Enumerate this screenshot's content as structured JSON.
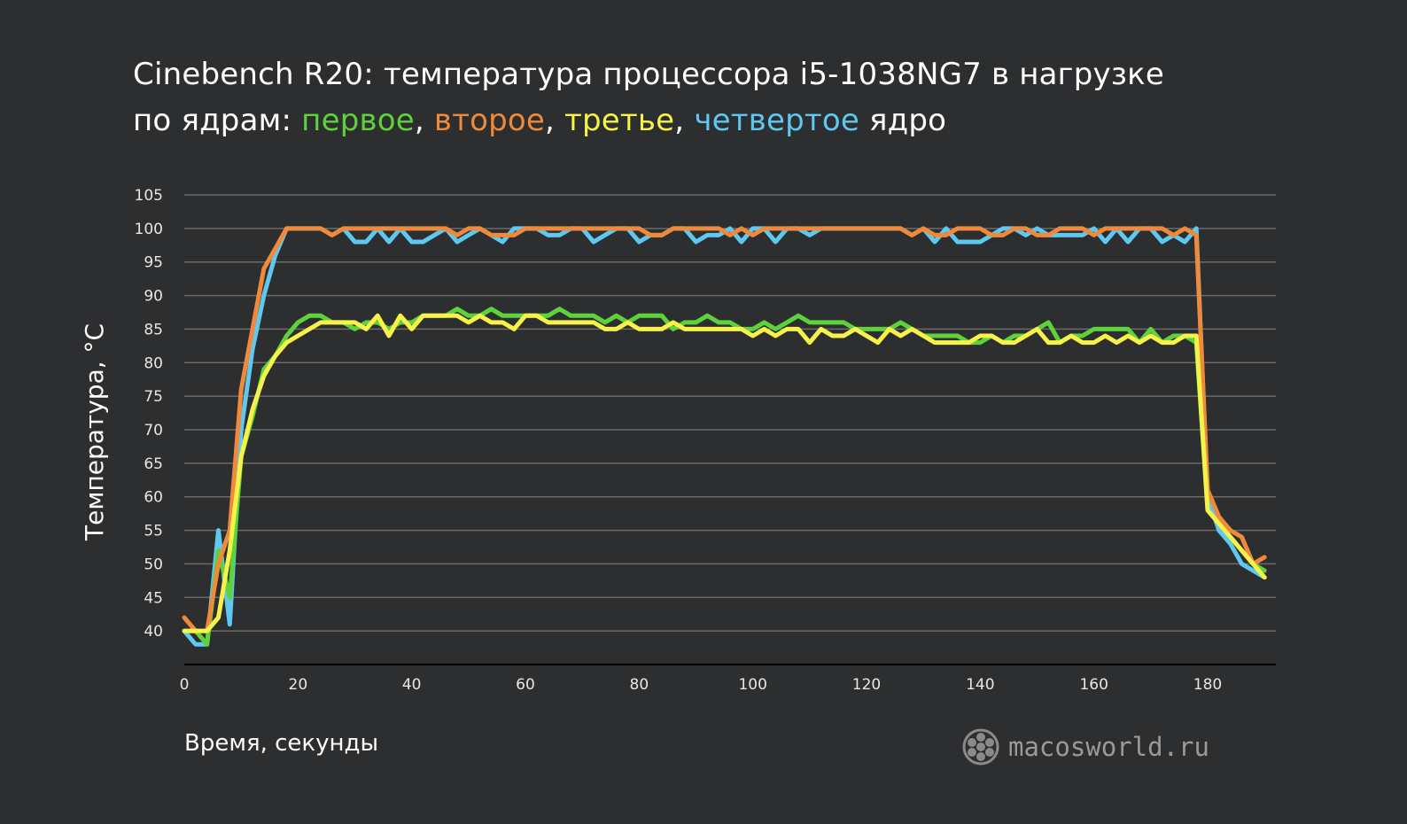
{
  "title": {
    "line1": "Cinebench R20: температура процессора i5-1038NG7 в нагрузке",
    "line2_prefix": "по ядрам: ",
    "core1": "первое",
    "sep1": ", ",
    "core2": "второе",
    "sep2": ", ",
    "core3": "третье",
    "sep3": ", ",
    "core4": "четвертое",
    "suffix": " ядро"
  },
  "watermark": {
    "text": "macosworld.ru",
    "icon": "aperture-logo-icon"
  },
  "colors": {
    "background": "#2d2e30",
    "grid": "#6a6a6a",
    "core1": "#5ed23a",
    "core2": "#f08a3a",
    "core3": "#f6f24a",
    "core4": "#5ec8f0"
  },
  "chart_data": {
    "type": "line",
    "xlabel": "Время, секунды",
    "ylabel": "Температура, °C",
    "xlim": [
      0,
      192
    ],
    "ylim": [
      35,
      105
    ],
    "xticks": [
      0,
      20,
      40,
      60,
      80,
      100,
      120,
      140,
      160,
      180
    ],
    "yticks": [
      40,
      45,
      50,
      55,
      60,
      65,
      70,
      75,
      80,
      85,
      90,
      95,
      100,
      105
    ],
    "grid": true,
    "series": [
      {
        "name": "четвертое",
        "color": "#5ec8f0",
        "x": [
          0,
          2,
          4,
          6,
          8,
          10,
          12,
          14,
          16,
          18,
          20,
          22,
          24,
          26,
          28,
          30,
          32,
          34,
          36,
          38,
          40,
          42,
          44,
          46,
          48,
          50,
          52,
          54,
          56,
          58,
          60,
          62,
          64,
          66,
          68,
          70,
          72,
          74,
          76,
          78,
          80,
          82,
          84,
          86,
          88,
          90,
          92,
          94,
          96,
          98,
          100,
          102,
          104,
          106,
          108,
          110,
          112,
          114,
          116,
          118,
          120,
          122,
          124,
          126,
          128,
          130,
          132,
          134,
          136,
          138,
          140,
          142,
          144,
          146,
          148,
          150,
          152,
          154,
          156,
          158,
          160,
          162,
          164,
          166,
          168,
          170,
          172,
          174,
          176,
          178,
          180,
          182,
          184,
          186,
          188,
          190
        ],
        "y": [
          40,
          38,
          38,
          55,
          41,
          70,
          82,
          90,
          96,
          100,
          100,
          100,
          100,
          99,
          100,
          98,
          98,
          100,
          98,
          100,
          98,
          98,
          99,
          100,
          98,
          99,
          100,
          99,
          98,
          100,
          100,
          100,
          99,
          99,
          100,
          100,
          98,
          99,
          100,
          100,
          98,
          99,
          99,
          100,
          100,
          98,
          99,
          99,
          100,
          98,
          100,
          100,
          98,
          100,
          100,
          99,
          100,
          100,
          100,
          100,
          100,
          100,
          100,
          100,
          99,
          100,
          98,
          100,
          98,
          98,
          98,
          99,
          100,
          100,
          99,
          100,
          99,
          99,
          99,
          99,
          100,
          98,
          100,
          98,
          100,
          100,
          98,
          99,
          98,
          100,
          60,
          55,
          53,
          50,
          49,
          48
        ]
      },
      {
        "name": "первое",
        "color": "#5ed23a",
        "x": [
          0,
          2,
          4,
          6,
          8,
          10,
          12,
          14,
          16,
          18,
          20,
          22,
          24,
          26,
          28,
          30,
          32,
          34,
          36,
          38,
          40,
          42,
          44,
          46,
          48,
          50,
          52,
          54,
          56,
          58,
          60,
          62,
          64,
          66,
          68,
          70,
          72,
          74,
          76,
          78,
          80,
          82,
          84,
          86,
          88,
          90,
          92,
          94,
          96,
          98,
          100,
          102,
          104,
          106,
          108,
          110,
          112,
          114,
          116,
          118,
          120,
          122,
          124,
          126,
          128,
          130,
          132,
          134,
          136,
          138,
          140,
          142,
          144,
          146,
          148,
          150,
          152,
          154,
          156,
          158,
          160,
          162,
          164,
          166,
          168,
          170,
          172,
          174,
          176,
          178,
          180,
          182,
          184,
          186,
          188,
          190
        ],
        "y": [
          40,
          40,
          38,
          52,
          45,
          66,
          72,
          79,
          81,
          84,
          86,
          87,
          87,
          86,
          86,
          85,
          86,
          86,
          85,
          86,
          86,
          87,
          87,
          87,
          88,
          87,
          87,
          88,
          87,
          87,
          87,
          87,
          87,
          88,
          87,
          87,
          87,
          86,
          87,
          86,
          87,
          87,
          87,
          85,
          86,
          86,
          87,
          86,
          86,
          85,
          85,
          86,
          85,
          86,
          87,
          86,
          86,
          86,
          86,
          85,
          85,
          85,
          85,
          86,
          85,
          84,
          84,
          84,
          84,
          83,
          83,
          84,
          83,
          84,
          84,
          85,
          86,
          83,
          84,
          84,
          85,
          85,
          85,
          85,
          83,
          85,
          83,
          84,
          84,
          83,
          58,
          56,
          54,
          52,
          50,
          49
        ]
      },
      {
        "name": "второе",
        "color": "#f08a3a",
        "x": [
          0,
          2,
          4,
          6,
          8,
          10,
          12,
          14,
          16,
          18,
          20,
          22,
          24,
          26,
          28,
          30,
          32,
          34,
          36,
          38,
          40,
          42,
          44,
          46,
          48,
          50,
          52,
          54,
          56,
          58,
          60,
          62,
          64,
          66,
          68,
          70,
          72,
          74,
          76,
          78,
          80,
          82,
          84,
          86,
          88,
          90,
          92,
          94,
          96,
          98,
          100,
          102,
          104,
          106,
          108,
          110,
          112,
          114,
          116,
          118,
          120,
          122,
          124,
          126,
          128,
          130,
          132,
          134,
          136,
          138,
          140,
          142,
          144,
          146,
          148,
          150,
          152,
          154,
          156,
          158,
          160,
          162,
          164,
          166,
          168,
          170,
          172,
          174,
          176,
          178,
          180,
          182,
          184,
          186,
          188,
          190
        ],
        "y": [
          42,
          40,
          40,
          50,
          55,
          76,
          85,
          94,
          97,
          100,
          100,
          100,
          100,
          99,
          100,
          100,
          100,
          100,
          100,
          100,
          100,
          100,
          100,
          100,
          99,
          100,
          100,
          99,
          99,
          99,
          100,
          100,
          100,
          100,
          100,
          100,
          100,
          100,
          100,
          100,
          100,
          99,
          99,
          100,
          100,
          100,
          100,
          100,
          99,
          100,
          99,
          100,
          100,
          100,
          100,
          100,
          100,
          100,
          100,
          100,
          100,
          100,
          100,
          100,
          99,
          100,
          99,
          99,
          100,
          100,
          100,
          99,
          99,
          100,
          100,
          99,
          99,
          100,
          100,
          100,
          99,
          100,
          100,
          100,
          100,
          100,
          100,
          99,
          100,
          99,
          61,
          57,
          55,
          54,
          50,
          51
        ]
      },
      {
        "name": "третье",
        "color": "#f6f24a",
        "x": [
          0,
          2,
          4,
          6,
          8,
          10,
          12,
          14,
          16,
          18,
          20,
          22,
          24,
          26,
          28,
          30,
          32,
          34,
          36,
          38,
          40,
          42,
          44,
          46,
          48,
          50,
          52,
          54,
          56,
          58,
          60,
          62,
          64,
          66,
          68,
          70,
          72,
          74,
          76,
          78,
          80,
          82,
          84,
          86,
          88,
          90,
          92,
          94,
          96,
          98,
          100,
          102,
          104,
          106,
          108,
          110,
          112,
          114,
          116,
          118,
          120,
          122,
          124,
          126,
          128,
          130,
          132,
          134,
          136,
          138,
          140,
          142,
          144,
          146,
          148,
          150,
          152,
          154,
          156,
          158,
          160,
          162,
          164,
          166,
          168,
          170,
          172,
          174,
          176,
          178,
          180,
          182,
          184,
          186,
          188,
          190
        ],
        "y": [
          40,
          40,
          40,
          42,
          52,
          66,
          73,
          78,
          81,
          83,
          84,
          85,
          86,
          86,
          86,
          86,
          85,
          87,
          84,
          87,
          85,
          87,
          87,
          87,
          87,
          86,
          87,
          86,
          86,
          85,
          87,
          87,
          86,
          86,
          86,
          86,
          86,
          85,
          85,
          86,
          85,
          85,
          85,
          86,
          85,
          85,
          85,
          85,
          85,
          85,
          84,
          85,
          84,
          85,
          85,
          83,
          85,
          84,
          84,
          85,
          84,
          83,
          85,
          84,
          85,
          84,
          83,
          83,
          83,
          83,
          84,
          84,
          83,
          83,
          84,
          85,
          83,
          83,
          84,
          83,
          83,
          84,
          83,
          84,
          83,
          84,
          83,
          83,
          84,
          84,
          58,
          56,
          54,
          52,
          50,
          48
        ]
      }
    ]
  }
}
